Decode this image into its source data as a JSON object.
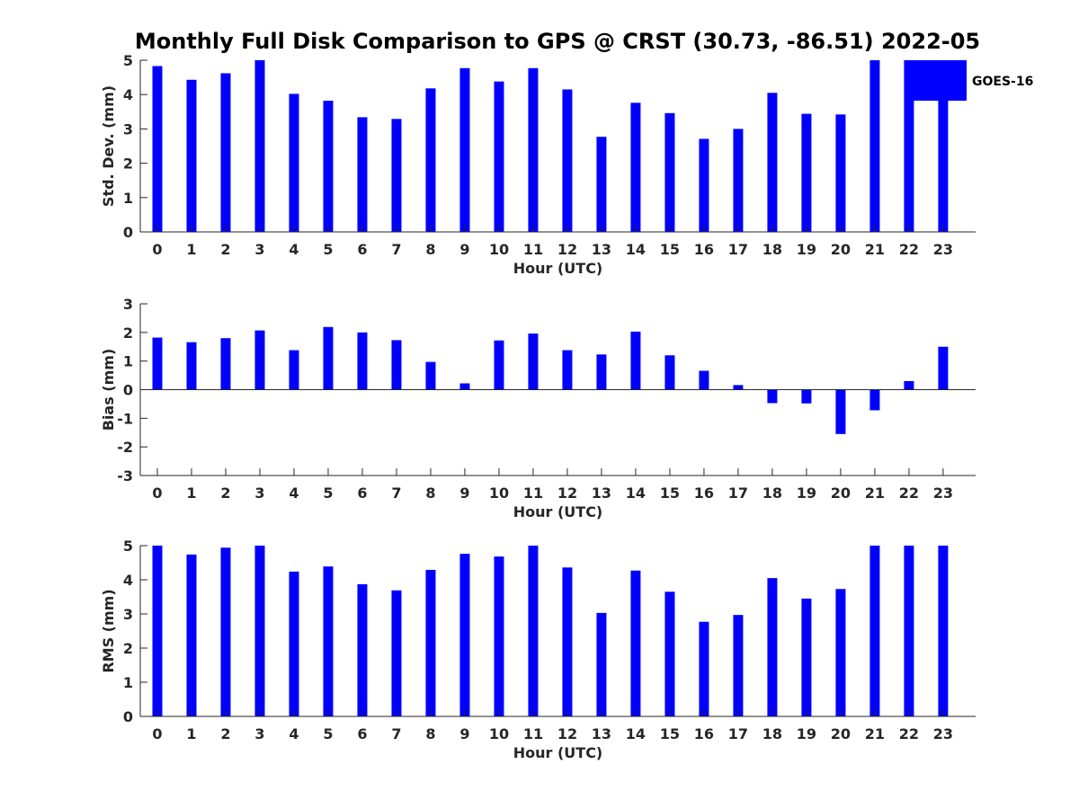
{
  "figure_title": "Monthly Full Disk Comparison to GPS @ CRST (30.73, -86.51) 2022-05",
  "colors": {
    "bar": "#0000ff",
    "axis": "#262626",
    "title": "#000000"
  },
  "chart_data": [
    {
      "type": "bar",
      "id": "std",
      "title": "",
      "xlabel": "Hour (UTC)",
      "ylabel": "Std. Dev. (mm)",
      "ylim": [
        0,
        5
      ],
      "yticks": [
        "0",
        "1",
        "2",
        "3",
        "4",
        "5"
      ],
      "categories": [
        "0",
        "1",
        "2",
        "3",
        "4",
        "5",
        "6",
        "7",
        "8",
        "9",
        "10",
        "11",
        "12",
        "13",
        "14",
        "15",
        "16",
        "17",
        "18",
        "19",
        "20",
        "21",
        "22",
        "23"
      ],
      "series": [
        {
          "name": "GOES-16",
          "values": [
            4.83,
            4.43,
            4.62,
            5.0,
            4.02,
            3.82,
            3.34,
            3.29,
            4.18,
            4.77,
            4.38,
            4.77,
            4.15,
            2.77,
            3.76,
            3.46,
            2.71,
            3.0,
            4.05,
            3.44,
            3.42,
            5.0,
            5.0,
            5.0
          ]
        }
      ],
      "legend": {
        "position": "top-right",
        "entries": [
          "GOES-16"
        ]
      }
    },
    {
      "type": "bar",
      "id": "bias",
      "title": "",
      "xlabel": "Hour (UTC)",
      "ylabel": "Bias (mm)",
      "ylim": [
        -3,
        3
      ],
      "yticks": [
        "-3",
        "-2",
        "-1",
        "0",
        "1",
        "2",
        "3"
      ],
      "categories": [
        "0",
        "1",
        "2",
        "3",
        "4",
        "5",
        "6",
        "7",
        "8",
        "9",
        "10",
        "11",
        "12",
        "13",
        "14",
        "15",
        "16",
        "17",
        "18",
        "19",
        "20",
        "21",
        "22",
        "23"
      ],
      "series": [
        {
          "name": "GOES-16",
          "values": [
            1.82,
            1.66,
            1.8,
            2.07,
            1.38,
            2.19,
            2.0,
            1.73,
            0.97,
            0.22,
            1.72,
            1.96,
            1.38,
            1.23,
            2.03,
            1.2,
            0.66,
            0.16,
            -0.47,
            -0.48,
            -1.55,
            -0.72,
            0.3,
            1.5
          ]
        }
      ]
    },
    {
      "type": "bar",
      "id": "rms",
      "title": "",
      "xlabel": "Hour (UTC)",
      "ylabel": "RMS (mm)",
      "ylim": [
        0,
        5
      ],
      "yticks": [
        "0",
        "1",
        "2",
        "3",
        "4",
        "5"
      ],
      "categories": [
        "0",
        "1",
        "2",
        "3",
        "4",
        "5",
        "6",
        "7",
        "8",
        "9",
        "10",
        "11",
        "12",
        "13",
        "14",
        "15",
        "16",
        "17",
        "18",
        "19",
        "20",
        "21",
        "22",
        "23"
      ],
      "series": [
        {
          "name": "GOES-16",
          "values": [
            5.0,
            4.74,
            4.94,
            5.0,
            4.24,
            4.39,
            3.87,
            3.69,
            4.29,
            4.76,
            4.68,
            5.0,
            4.36,
            3.03,
            4.27,
            3.65,
            2.77,
            2.97,
            4.05,
            3.45,
            3.73,
            5.0,
            5.0,
            5.0
          ]
        }
      ]
    }
  ]
}
